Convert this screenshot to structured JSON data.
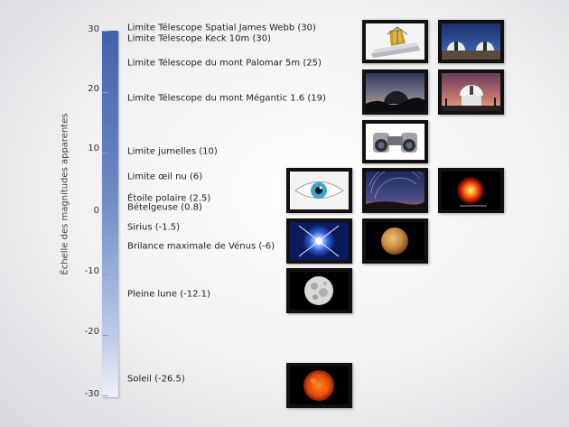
{
  "axis": {
    "title": "Échelle des magnitudes apparentes",
    "ticks": [
      30,
      20,
      10,
      0,
      -10,
      -20,
      -30
    ],
    "range": [
      -30,
      30
    ],
    "bar_color_top": "#3f63ad",
    "bar_color_bottom": "#eef1f8"
  },
  "labels": [
    {
      "text": "Limite Télescope Spatial James Webb (30)"
    },
    {
      "text": "Limite Télescope Keck 10m (30)"
    },
    {
      "text": "Limite Télescope  du mont Palomar 5m (25)"
    },
    {
      "text": "Limite Télescope du mont Mégantic 1.6 (19)"
    },
    {
      "text": "Limite jumelles (10)"
    },
    {
      "text": "Limite œil nu (6)"
    },
    {
      "text": "Étoile polaire (2.5)"
    },
    {
      "text": "Bételgeuse (0.8)"
    },
    {
      "text": "Sirius (-1.5)"
    },
    {
      "text": "Brilance maximale de Vénus (-6)"
    },
    {
      "text": "Pleine lune (-12.1)"
    },
    {
      "text": "Soleil (-26.5)"
    }
  ],
  "images": [
    {
      "name": "james-webb-telescope-photo",
      "icon": "telescope-spacecraft"
    },
    {
      "name": "keck-observatory-photo",
      "icon": "observatory-domes"
    },
    {
      "name": "palomar-observatory-photo",
      "icon": "observatory-sunset"
    },
    {
      "name": "megantic-observatory-photo",
      "icon": "observatory-dome"
    },
    {
      "name": "binoculars-photo",
      "icon": "binoculars"
    },
    {
      "name": "eye-photo",
      "icon": "human-eye"
    },
    {
      "name": "polaris-star-trails-photo",
      "icon": "star-trails"
    },
    {
      "name": "betelgeuse-photo",
      "icon": "red-star"
    },
    {
      "name": "sirius-photo",
      "icon": "bright-star"
    },
    {
      "name": "venus-photo",
      "icon": "planet-venus"
    },
    {
      "name": "full-moon-photo",
      "icon": "moon"
    },
    {
      "name": "sun-photo",
      "icon": "sun"
    }
  ]
}
